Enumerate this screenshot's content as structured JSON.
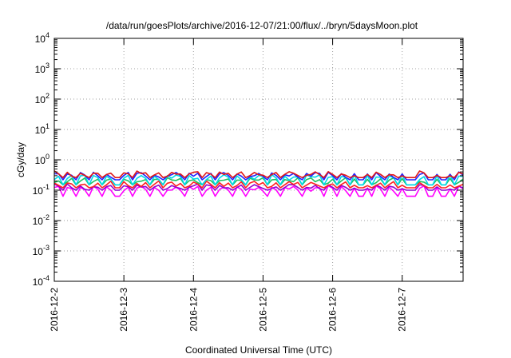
{
  "chart_data": {
    "type": "line",
    "title": "/data/run/goesPlots/archive/2016-12-07/21:00/flux/../bryn/5daysMoon.plot",
    "xlabel": "Coordinated Universal Time (UTC)",
    "ylabel": "cGy/day",
    "yscale": "log",
    "ylim": [
      0.0001,
      10000
    ],
    "xlim": [
      "2016-12-02T00:00",
      "2016-12-07T21:00"
    ],
    "grid": true,
    "y_ticks": [
      {
        "base": "10",
        "exp": "-4"
      },
      {
        "base": "10",
        "exp": "-3"
      },
      {
        "base": "10",
        "exp": "-2"
      },
      {
        "base": "10",
        "exp": "-1"
      },
      {
        "base": "10",
        "exp": "0"
      },
      {
        "base": "10",
        "exp": "1"
      },
      {
        "base": "10",
        "exp": "2"
      },
      {
        "base": "10",
        "exp": "3"
      },
      {
        "base": "10",
        "exp": "4"
      }
    ],
    "x_ticks": [
      "2016-12-2",
      "2016-12-3",
      "2016-12-4",
      "2016-12-5",
      "2016-12-6",
      "2016-12-7"
    ],
    "x_range_days": [
      0,
      5.875
    ],
    "sample_step_days": 0.0625,
    "series": [
      {
        "color": "#ff00ff",
        "base": 0.115,
        "dip": 0.06
      },
      {
        "color": "#9400d3",
        "base": 0.135,
        "dip": 0.1
      },
      {
        "color": "#ff2020",
        "base": 0.165,
        "dip": 0.12
      },
      {
        "color": "#20c060",
        "base": 0.215,
        "dip": 0.15
      },
      {
        "color": "#00d8e8",
        "base": 0.27,
        "dip": 0.15
      },
      {
        "color": "#2020ff",
        "base": 0.33,
        "dip": 0.22
      },
      {
        "color": "#e01818",
        "base": 0.36,
        "dip": 0.26
      }
    ],
    "dip_days": [
      0.1,
      0.3,
      0.5,
      0.7,
      0.9,
      1.1,
      1.35,
      1.55,
      1.9,
      2.1,
      2.3,
      2.55,
      2.75,
      3.05,
      3.25,
      3.55,
      3.9,
      4.05,
      4.25,
      4.4,
      4.55,
      4.75,
      4.95,
      5.1,
      5.2,
      5.4,
      5.6,
      5.75
    ]
  }
}
